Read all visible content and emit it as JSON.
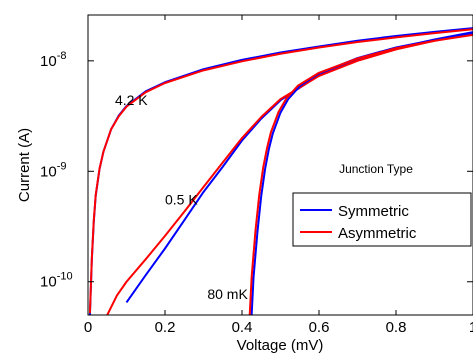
{
  "chart_data": {
    "type": "line",
    "xlabel": "Voltage (mV)",
    "ylabel": "Current (A)",
    "xlim": [
      0,
      1.0
    ],
    "ylim": [
      5e-11,
      2.6e-08
    ],
    "yscale": "log",
    "xticks": [
      0,
      0.2,
      0.4,
      0.6,
      0.8,
      1.0
    ],
    "xtick_labels": [
      "0",
      "0.2",
      "0.4",
      "0.6",
      "0.8",
      "1"
    ],
    "yticks": [
      1e-10,
      1e-09,
      1e-08
    ],
    "ytick_labels": [
      {
        "base": "10",
        "exp": "-10"
      },
      {
        "base": "10",
        "exp": "-9"
      },
      {
        "base": "10",
        "exp": "-8"
      }
    ],
    "grid": false,
    "legend": {
      "title": "Junction Type",
      "placement": "right-center",
      "entries": [
        {
          "name": "Symmetric",
          "color": "#0000ff"
        },
        {
          "name": "Asymmetric",
          "color": "#ff0000"
        }
      ]
    },
    "annotations": [
      {
        "text": "4.2 K",
        "x": 0.07,
        "y": 4e-09
      },
      {
        "text": "0.5 K",
        "x": 0.2,
        "y": 5e-10
      },
      {
        "text": "80 mK",
        "x": 0.31,
        "y": 7e-11
      }
    ],
    "groups": [
      {
        "label": "4.2 K",
        "series": [
          {
            "name": "Symmetric",
            "color": "#0000ff",
            "x": [
              0.005,
              0.01,
              0.015,
              0.02,
              0.03,
              0.04,
              0.06,
              0.08,
              0.1,
              0.15,
              0.2,
              0.3,
              0.4,
              0.5,
              0.6,
              0.7,
              0.8,
              0.9,
              1.0
            ],
            "y": [
              5e-11,
              1.6e-10,
              3.5e-10,
              6e-10,
              1.05e-09,
              1.5e-09,
              2.4e-09,
              3.2e-09,
              3.9e-09,
              5.3e-09,
              6.4e-09,
              8.4e-09,
              1.02e-08,
              1.19e-08,
              1.35e-08,
              1.52e-08,
              1.68e-08,
              1.83e-08,
              1.98e-08
            ]
          },
          {
            "name": "Asymmetric",
            "color": "#ff0000",
            "x": [
              0.005,
              0.01,
              0.015,
              0.02,
              0.03,
              0.04,
              0.06,
              0.08,
              0.1,
              0.15,
              0.2,
              0.3,
              0.4,
              0.5,
              0.6,
              0.7,
              0.8,
              0.9,
              1.0
            ],
            "y": [
              5.2e-11,
              1.65e-10,
              3.6e-10,
              6.1e-10,
              1.06e-09,
              1.5e-09,
              2.4e-09,
              3.15e-09,
              3.85e-09,
              5.2e-09,
              6.3e-09,
              8.2e-09,
              9.9e-09,
              1.16e-08,
              1.32e-08,
              1.48e-08,
              1.63e-08,
              1.78e-08,
              1.93e-08
            ]
          }
        ]
      },
      {
        "label": "0.5 K",
        "series": [
          {
            "name": "Symmetric",
            "color": "#0000ff",
            "x": [
              0.1,
              0.15,
              0.2,
              0.25,
              0.3,
              0.35,
              0.4,
              0.45,
              0.5,
              0.6,
              0.7,
              0.8,
              0.9,
              1.0
            ],
            "y": [
              6.5e-11,
              1.15e-10,
              2e-10,
              3.6e-10,
              6.5e-10,
              1.1e-09,
              1.9e-09,
              3e-09,
              4.4e-09,
              7.4e-09,
              1.02e-08,
              1.3e-08,
              1.56e-08,
              1.82e-08
            ]
          },
          {
            "name": "Asymmetric",
            "color": "#ff0000",
            "x": [
              0.05,
              0.075,
              0.1,
              0.15,
              0.2,
              0.25,
              0.3,
              0.35,
              0.4,
              0.45,
              0.5,
              0.6,
              0.7,
              0.8,
              0.9,
              1.0
            ],
            "y": [
              5e-11,
              7.5e-11,
              1e-10,
              1.6e-10,
              2.6e-10,
              4.3e-10,
              7.2e-10,
              1.2e-09,
              2e-09,
              3.1e-09,
              4.5e-09,
              7.3e-09,
              1e-08,
              1.27e-08,
              1.52e-08,
              1.76e-08
            ]
          }
        ]
      },
      {
        "label": "80 mK",
        "series": [
          {
            "name": "Symmetric",
            "color": "#0000ff",
            "x": [
              0.425,
              0.43,
              0.44,
              0.45,
              0.46,
              0.47,
              0.48,
              0.5,
              0.52,
              0.55,
              0.6,
              0.7,
              0.8,
              0.9,
              1.0
            ],
            "y": [
              5e-11,
              1.1e-10,
              2.8e-10,
              6e-10,
              1.05e-09,
              1.6e-09,
              2.2e-09,
              3.4e-09,
              4.5e-09,
              5.9e-09,
              7.7e-09,
              1.06e-08,
              1.32e-08,
              1.55e-08,
              1.76e-08
            ]
          },
          {
            "name": "Asymmetric",
            "color": "#ff0000",
            "x": [
              0.42,
              0.425,
              0.435,
              0.445,
              0.455,
              0.465,
              0.475,
              0.495,
              0.515,
              0.545,
              0.6,
              0.7,
              0.8,
              0.9,
              1.0
            ],
            "y": [
              5e-11,
              1.1e-10,
              2.9e-10,
              6.2e-10,
              1.08e-09,
              1.62e-09,
              2.25e-09,
              3.45e-09,
              4.55e-09,
              5.95e-09,
              7.8e-09,
              1.05e-08,
              1.3e-08,
              1.52e-08,
              1.72e-08
            ]
          }
        ]
      }
    ]
  }
}
